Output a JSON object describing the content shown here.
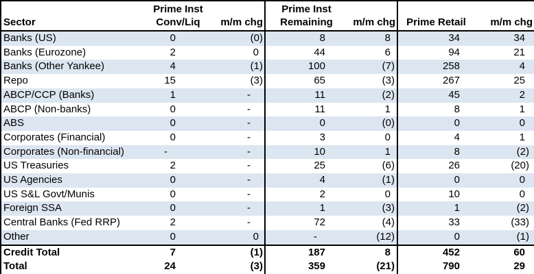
{
  "colors": {
    "row_band": "#dce6f1",
    "border": "#000000",
    "text": "#000000",
    "background": "#ffffff"
  },
  "table": {
    "headers": {
      "sector": "Sector",
      "groups": [
        {
          "line1": "Prime Inst",
          "line2": "Conv/Liq"
        },
        {
          "line1": "",
          "line2": "m/m chg"
        },
        {
          "line1": "Prime Inst",
          "line2": "Remaining"
        },
        {
          "line1": "",
          "line2": "m/m chg"
        },
        {
          "line1": "",
          "line2": "Prime Retail"
        },
        {
          "line1": "",
          "line2": "m/m chg"
        }
      ]
    },
    "rows": [
      {
        "sector": "Banks (US)",
        "values": [
          "0",
          "(0)",
          "8",
          "8",
          "34",
          "34"
        ]
      },
      {
        "sector": "Banks (Eurozone)",
        "values": [
          "2",
          "0",
          "44",
          "6",
          "94",
          "21"
        ]
      },
      {
        "sector": "Banks (Other Yankee)",
        "values": [
          "4",
          "(1)",
          "100",
          "(7)",
          "258",
          "4"
        ]
      },
      {
        "sector": "Repo",
        "values": [
          "15",
          "(3)",
          "65",
          "(3)",
          "267",
          "25"
        ]
      },
      {
        "sector": "ABCP/CCP (Banks)",
        "values": [
          "1",
          "-",
          "11",
          "(2)",
          "45",
          "2"
        ]
      },
      {
        "sector": "ABCP (Non-banks)",
        "values": [
          "0",
          "-",
          "11",
          "1",
          "8",
          "1"
        ]
      },
      {
        "sector": "ABS",
        "values": [
          "0",
          "-",
          "0",
          "(0)",
          "0",
          "0"
        ]
      },
      {
        "sector": "Corporates (Financial)",
        "values": [
          "0",
          "-",
          "3",
          "0",
          "4",
          "1"
        ]
      },
      {
        "sector": "Corporates (Non-financial)",
        "values": [
          "-",
          "-",
          "10",
          "1",
          "8",
          "(2)"
        ]
      },
      {
        "sector": "US Treasuries",
        "values": [
          "2",
          "-",
          "25",
          "(6)",
          "26",
          "(20)"
        ]
      },
      {
        "sector": "US Agencies",
        "values": [
          "0",
          "-",
          "4",
          "(1)",
          "0",
          "0"
        ]
      },
      {
        "sector": "US S&L Govt/Munis",
        "values": [
          "0",
          "-",
          "2",
          "0",
          "10",
          "0"
        ]
      },
      {
        "sector": "Foreign SSA",
        "values": [
          "0",
          "-",
          "1",
          "(3)",
          "1",
          "(2)"
        ]
      },
      {
        "sector": "Central Banks (Fed RRP)",
        "values": [
          "2",
          "-",
          "72",
          "(4)",
          "33",
          "(33)"
        ]
      },
      {
        "sector": "Other",
        "values": [
          "0",
          "0",
          "-",
          "(12)",
          "0",
          "(1)"
        ]
      },
      {
        "sector": "Credit Total",
        "bold": true,
        "values": [
          "7",
          "(1)",
          "187",
          "8",
          "452",
          "60"
        ]
      },
      {
        "sector": "Total",
        "bold": true,
        "values": [
          "24",
          "(3)",
          "359",
          "(21)",
          "790",
          "29"
        ]
      }
    ]
  },
  "chart_data": {
    "type": "table",
    "title": "",
    "columns": [
      "Sector",
      "Prime Inst Conv/Liq",
      "m/m chg",
      "Prime Inst Remaining",
      "m/m chg",
      "Prime Retail",
      "m/m chg"
    ],
    "rows": [
      [
        "Banks (US)",
        "0",
        "(0)",
        "8",
        "8",
        "34",
        "34"
      ],
      [
        "Banks (Eurozone)",
        "2",
        "0",
        "44",
        "6",
        "94",
        "21"
      ],
      [
        "Banks (Other Yankee)",
        "4",
        "(1)",
        "100",
        "(7)",
        "258",
        "4"
      ],
      [
        "Repo",
        "15",
        "(3)",
        "65",
        "(3)",
        "267",
        "25"
      ],
      [
        "ABCP/CCP (Banks)",
        "1",
        "-",
        "11",
        "(2)",
        "45",
        "2"
      ],
      [
        "ABCP (Non-banks)",
        "0",
        "-",
        "11",
        "1",
        "8",
        "1"
      ],
      [
        "ABS",
        "0",
        "-",
        "0",
        "(0)",
        "0",
        "0"
      ],
      [
        "Corporates (Financial)",
        "0",
        "-",
        "3",
        "0",
        "4",
        "1"
      ],
      [
        "Corporates (Non-financial)",
        "-",
        "-",
        "10",
        "1",
        "8",
        "(2)"
      ],
      [
        "US Treasuries",
        "2",
        "-",
        "25",
        "(6)",
        "26",
        "(20)"
      ],
      [
        "US Agencies",
        "0",
        "-",
        "4",
        "(1)",
        "0",
        "0"
      ],
      [
        "US S&L Govt/Munis",
        "0",
        "-",
        "2",
        "0",
        "10",
        "0"
      ],
      [
        "Foreign SSA",
        "0",
        "-",
        "1",
        "(3)",
        "1",
        "(2)"
      ],
      [
        "Central Banks (Fed RRP)",
        "2",
        "-",
        "72",
        "(4)",
        "33",
        "(33)"
      ],
      [
        "Other",
        "0",
        "0",
        "-",
        "(12)",
        "0",
        "(1)"
      ],
      [
        "Credit Total",
        "7",
        "(1)",
        "187",
        "8",
        "452",
        "60"
      ],
      [
        "Total",
        "24",
        "(3)",
        "359",
        "(21)",
        "790",
        "29"
      ]
    ]
  }
}
